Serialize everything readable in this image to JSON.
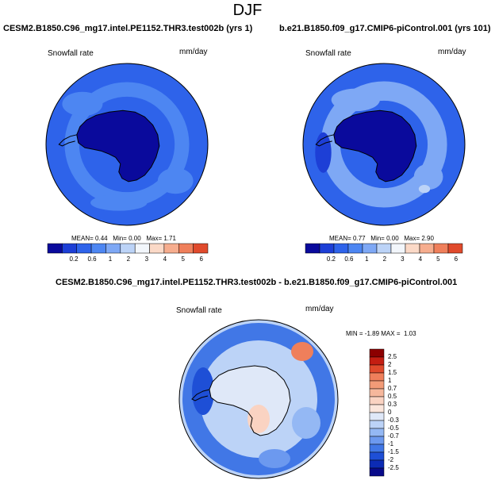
{
  "title": "DJF",
  "panels": [
    {
      "title": "CESM2.B1850.C96_mg17.intel.PE1152.THR3.test002b (yrs 1)",
      "variable": "Snowfall rate",
      "units": "mm/day",
      "stats": {
        "mean_label": "MEAN=",
        "mean": "0.44",
        "min_label": "Min=",
        "min": "0.00",
        "max_label": "Max=",
        "max": "1.71"
      },
      "levels": [
        "0.2",
        "0.6",
        "1",
        "2",
        "3",
        "4",
        "5",
        "6"
      ],
      "colors": [
        "#0a0a9c",
        "#1d3fd6",
        "#2e63ea",
        "#4d86f2",
        "#7ea8f5",
        "#bcd3f7",
        "#f2f6fb",
        "#fbd9c7",
        "#f6ad8e",
        "#ef7f5b",
        "#e04a2c",
        "#c41e12",
        "#8c0000"
      ]
    },
    {
      "title": "b.e21.B1850.f09_g17.CMIP6-piControl.001 (yrs 101)",
      "variable": "Snowfall rate",
      "units": "mm/day",
      "stats": {
        "mean_label": "MEAN=",
        "mean": "0.77",
        "min_label": "Min=",
        "min": "0.00",
        "max_label": "Max=",
        "max": "2.90"
      },
      "levels": [
        "0.2",
        "0.6",
        "1",
        "2",
        "3",
        "4",
        "5",
        "6"
      ],
      "colors": [
        "#0a0a9c",
        "#1d3fd6",
        "#2e63ea",
        "#4d86f2",
        "#7ea8f5",
        "#bcd3f7",
        "#f2f6fb",
        "#fbd9c7",
        "#f6ad8e",
        "#ef7f5b",
        "#e04a2c",
        "#c41e12",
        "#8c0000"
      ]
    }
  ],
  "diff": {
    "title": "CESM2.B1850.C96_mg17.intel.PE1152.THR3.test002b - b.e21.B1850.f09_g17.CMIP6-piControl.001",
    "variable": "Snowfall rate",
    "units": "mm/day",
    "stats": {
      "min_label": "MIN =",
      "min": "-1.89",
      "max_label": "MAX =",
      "max": "1.03"
    },
    "levels": [
      "2.5",
      "2",
      "1.5",
      "1",
      "0.7",
      "0.5",
      "0.3",
      "0",
      "-0.3",
      "-0.5",
      "-0.7",
      "-1",
      "-1.5",
      "-2",
      "-2.5"
    ],
    "colors": [
      "#8c0000",
      "#c41e12",
      "#e04a2c",
      "#ef7f5b",
      "#f29b77",
      "#f6b79c",
      "#fad3c2",
      "#fbe6dc",
      "#dfe8f8",
      "#bcd3f7",
      "#94b8f4",
      "#6c99ef",
      "#4177e6",
      "#1e4fd6",
      "#0c2bb4",
      "#080a8a"
    ]
  }
}
